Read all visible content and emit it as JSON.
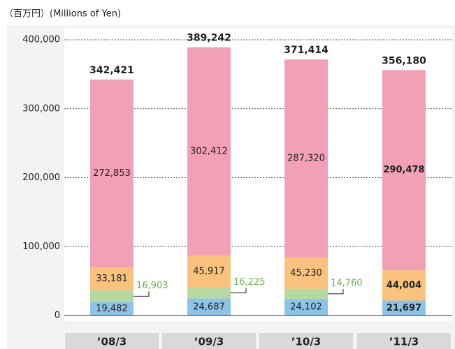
{
  "chart_data": {
    "type": "stacked-bar",
    "title": "（百万円）(Millions of Yen)",
    "categories": [
      "’08/3",
      "’09/3",
      "’10/3",
      "’11/3"
    ],
    "series": [
      {
        "name": "blue",
        "color": "#8ec3e8",
        "values": [
          19482,
          24687,
          24102,
          21697
        ],
        "value_labels": [
          "19,482",
          "24,687",
          "24,102",
          "21,697"
        ]
      },
      {
        "name": "green",
        "color": "#b5d9a0",
        "values": [
          16903,
          16225,
          14760,
          null
        ],
        "value_labels": [
          "16,903",
          "16,225",
          "14,760",
          null
        ]
      },
      {
        "name": "orange",
        "color": "#f9c27e",
        "values": [
          33181,
          45917,
          45230,
          44004
        ],
        "value_labels": [
          "33,181",
          "45,917",
          "45,230",
          "44,004"
        ]
      },
      {
        "name": "pink",
        "color": "#f2a0b5",
        "values": [
          272853,
          302412,
          287320,
          290478
        ],
        "value_labels": [
          "272,853",
          "302,412",
          "287,320",
          "290,478"
        ]
      }
    ],
    "totals": [
      342421,
      389242,
      371414,
      356180
    ],
    "total_labels": [
      "342,421",
      "389,242",
      "371,414",
      "356,180"
    ],
    "ylim": [
      0,
      400000
    ],
    "yticks": [
      0,
      {
        "value": 100000,
        "label": "100,000"
      },
      {
        "value": 200000,
        "label": "200,000"
      },
      {
        "value": 300000,
        "label": "300,000"
      },
      {
        "value": 400000,
        "label": "400,000"
      }
    ],
    "grid": true
  }
}
